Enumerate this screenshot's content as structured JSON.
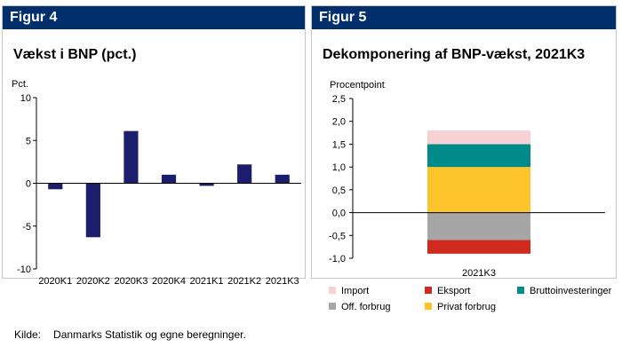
{
  "figures": [
    {
      "header": "Figur 4",
      "title": "Vækst i BNP (pct.)",
      "chart_data": {
        "type": "bar",
        "ylabel": "Pct.",
        "ylim": [
          -10,
          10
        ],
        "yticks": [
          10,
          5,
          0,
          -5,
          -10
        ],
        "categories": [
          "2020K1",
          "2020K2",
          "2020K3",
          "2020K4",
          "2021K1",
          "2021K2",
          "2021K3"
        ],
        "values": [
          -0.7,
          -6.3,
          6.1,
          1.0,
          -0.3,
          2.2,
          1.0
        ],
        "color": "#1d1d6e"
      }
    },
    {
      "header": "Figur 5",
      "title": "Dekomponering af BNP-vækst, 2021K3",
      "chart_data": {
        "type": "bar",
        "stacked": true,
        "ylabel": "Procentpoint",
        "ylim": [
          -1.0,
          2.5
        ],
        "yticks": [
          "2,5",
          "2,0",
          "1,5",
          "1,0",
          "0,5",
          "0,0",
          "-0,5",
          "-1,0"
        ],
        "categories": [
          "2021K3"
        ],
        "series": [
          {
            "name": "Import",
            "values": [
              0.3
            ],
            "color": "#f6d2d4"
          },
          {
            "name": "Eksport",
            "values": [
              -0.3
            ],
            "color": "#d02a1e"
          },
          {
            "name": "Bruttoinvesteringer",
            "values": [
              0.5
            ],
            "color": "#008b8b"
          },
          {
            "name": "Off. forbrug",
            "values": [
              -0.6
            ],
            "color": "#a6a6a6"
          },
          {
            "name": "Privat forbrug",
            "values": [
              1.0
            ],
            "color": "#fdc52b"
          }
        ]
      }
    }
  ],
  "source": {
    "label": "Kilde:",
    "text": "Danmarks Statistik og egne beregninger."
  }
}
